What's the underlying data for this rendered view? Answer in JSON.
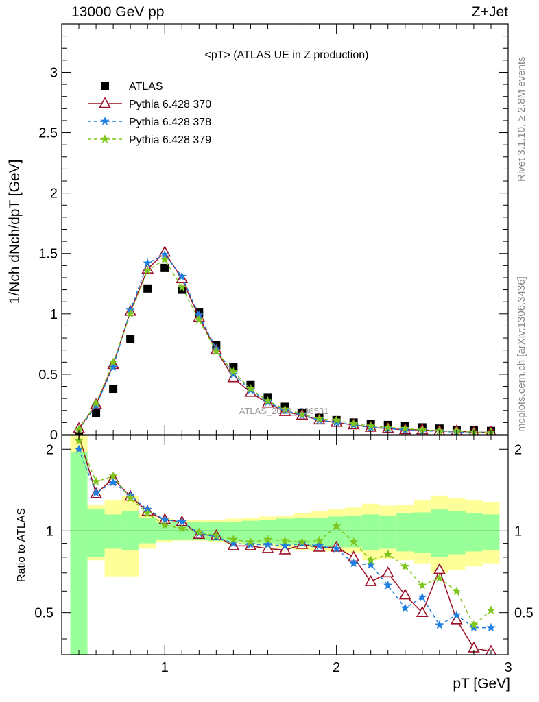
{
  "header": {
    "left": "13000 GeV pp",
    "right": "Z+Jet"
  },
  "side_labels": {
    "top": "Rivet 3.1.10, ≥ 2.8M events",
    "bottom": "mcplots.cern.ch [arXiv:1306.3436]"
  },
  "watermark": "ATLAS_2014_I736531",
  "colors": {
    "atlas": "#000000",
    "p370": "#9a0f26",
    "p378": "#1f7fe0",
    "p379": "#7ec51d",
    "band_inner": "#99ff99",
    "band_outer": "#ffff99"
  },
  "chart_data": [
    {
      "type": "line",
      "title": "<pT> (ATLAS UE in Z production)",
      "ylabel": "1/Nch dNch/dpT [GeV]",
      "xlim": [
        0.4,
        3.0
      ],
      "ylim": [
        0,
        3.4
      ],
      "yticks": [
        "0",
        "0.5",
        "1",
        "1.5",
        "2",
        "2.5",
        "3"
      ],
      "x": [
        0.5,
        0.6,
        0.7,
        0.8,
        0.9,
        1.0,
        1.1,
        1.2,
        1.3,
        1.4,
        1.5,
        1.6,
        1.7,
        1.8,
        1.9,
        2.0,
        2.1,
        2.2,
        2.3,
        2.4,
        2.5,
        2.6,
        2.7,
        2.8,
        2.9
      ],
      "legend": [
        "ATLAS",
        "Pythia 6.428 370",
        "Pythia 6.428 378",
        "Pythia 6.428 379"
      ],
      "series": [
        {
          "name": "ATLAS",
          "values": [
            0.02,
            0.18,
            0.38,
            0.79,
            1.21,
            1.38,
            1.2,
            1.01,
            0.74,
            0.56,
            0.41,
            0.31,
            0.23,
            0.18,
            0.14,
            0.12,
            0.1,
            0.09,
            0.08,
            0.07,
            0.06,
            0.05,
            0.04,
            0.04,
            0.03
          ]
        },
        {
          "name": "Pythia 6.428 370",
          "values": [
            0.05,
            0.25,
            0.58,
            1.02,
            1.37,
            1.51,
            1.29,
            0.97,
            0.7,
            0.47,
            0.35,
            0.26,
            0.19,
            0.16,
            0.12,
            0.1,
            0.08,
            0.06,
            0.05,
            0.04,
            0.04,
            0.03,
            0.03,
            0.02,
            0.02
          ]
        },
        {
          "name": "Pythia 6.428 378",
          "values": [
            0.04,
            0.24,
            0.56,
            1.03,
            1.42,
            1.49,
            1.31,
            0.99,
            0.71,
            0.5,
            0.37,
            0.27,
            0.2,
            0.16,
            0.12,
            0.1,
            0.08,
            0.06,
            0.05,
            0.04,
            0.03,
            0.03,
            0.02,
            0.02,
            0.02
          ]
        },
        {
          "name": "Pythia 6.428 379",
          "values": [
            0.04,
            0.26,
            0.6,
            1.0,
            1.36,
            1.45,
            1.22,
            0.95,
            0.69,
            0.52,
            0.38,
            0.28,
            0.21,
            0.17,
            0.13,
            0.12,
            0.09,
            0.07,
            0.06,
            0.05,
            0.04,
            0.03,
            0.03,
            0.02,
            0.02
          ]
        }
      ]
    },
    {
      "type": "line",
      "ylabel": "Ratio to ATLAS",
      "xlabel": "pT [GeV]",
      "xlim": [
        0.4,
        3.0
      ],
      "ylim": [
        0.35,
        2.25
      ],
      "xticks": [
        "1",
        "2",
        "3"
      ],
      "yticks": [
        "0.5",
        "1",
        "2"
      ],
      "x": [
        0.5,
        0.6,
        0.7,
        0.8,
        0.9,
        1.0,
        1.1,
        1.2,
        1.3,
        1.4,
        1.5,
        1.6,
        1.7,
        1.8,
        1.9,
        2.0,
        2.1,
        2.2,
        2.3,
        2.4,
        2.5,
        2.6,
        2.7,
        2.8,
        2.9
      ],
      "bands": {
        "inner": [
          [
            0.35,
            1.95
          ],
          [
            0.8,
            1.2
          ],
          [
            0.86,
            1.15
          ],
          [
            0.85,
            1.18
          ],
          [
            0.9,
            1.12
          ],
          [
            0.93,
            1.08
          ],
          [
            0.93,
            1.08
          ],
          [
            0.93,
            1.08
          ],
          [
            0.92,
            1.08
          ],
          [
            0.91,
            1.08
          ],
          [
            0.9,
            1.09
          ],
          [
            0.9,
            1.1
          ],
          [
            0.89,
            1.11
          ],
          [
            0.88,
            1.12
          ],
          [
            0.87,
            1.12
          ],
          [
            0.87,
            1.13
          ],
          [
            0.87,
            1.14
          ],
          [
            0.85,
            1.15
          ],
          [
            0.86,
            1.14
          ],
          [
            0.84,
            1.16
          ],
          [
            0.83,
            1.17
          ],
          [
            0.8,
            1.2
          ],
          [
            0.82,
            1.18
          ],
          [
            0.84,
            1.16
          ],
          [
            0.85,
            1.15
          ]
        ],
        "outer": [
          [
            0.35,
            2.3
          ],
          [
            0.78,
            1.25
          ],
          [
            0.68,
            1.3
          ],
          [
            0.68,
            1.35
          ],
          [
            0.86,
            1.16
          ],
          [
            0.91,
            1.11
          ],
          [
            0.92,
            1.1
          ],
          [
            0.92,
            1.1
          ],
          [
            0.91,
            1.1
          ],
          [
            0.9,
            1.11
          ],
          [
            0.89,
            1.12
          ],
          [
            0.88,
            1.13
          ],
          [
            0.86,
            1.14
          ],
          [
            0.85,
            1.16
          ],
          [
            0.84,
            1.18
          ],
          [
            0.84,
            1.2
          ],
          [
            0.83,
            1.22
          ],
          [
            0.78,
            1.26
          ],
          [
            0.79,
            1.24
          ],
          [
            0.78,
            1.25
          ],
          [
            0.76,
            1.3
          ],
          [
            0.7,
            1.35
          ],
          [
            0.72,
            1.32
          ],
          [
            0.74,
            1.3
          ],
          [
            0.76,
            1.28
          ]
        ]
      },
      "series": [
        {
          "name": "Pythia 6.428 370",
          "values": [
            2.27,
            1.37,
            1.56,
            1.34,
            1.18,
            1.1,
            1.08,
            0.97,
            0.96,
            0.88,
            0.88,
            0.86,
            0.85,
            0.89,
            0.87,
            0.87,
            0.8,
            0.65,
            0.7,
            0.58,
            0.5,
            0.72,
            0.47,
            0.37,
            0.36
          ]
        },
        {
          "name": "Pythia 6.428 378",
          "values": [
            2.0,
            1.38,
            1.51,
            1.35,
            1.2,
            1.1,
            1.08,
            0.98,
            0.95,
            0.9,
            0.89,
            0.89,
            0.88,
            0.9,
            0.88,
            0.86,
            0.76,
            0.75,
            0.63,
            0.52,
            0.57,
            0.45,
            0.49,
            0.44,
            0.44
          ]
        },
        {
          "name": "Pythia 6.428 379",
          "values": [
            2.15,
            1.52,
            1.59,
            1.32,
            1.16,
            1.05,
            1.02,
            0.99,
            0.96,
            0.93,
            0.91,
            0.93,
            0.92,
            0.91,
            0.92,
            1.04,
            0.91,
            0.78,
            0.82,
            0.74,
            0.63,
            0.67,
            0.6,
            0.45,
            0.51
          ]
        }
      ]
    }
  ]
}
